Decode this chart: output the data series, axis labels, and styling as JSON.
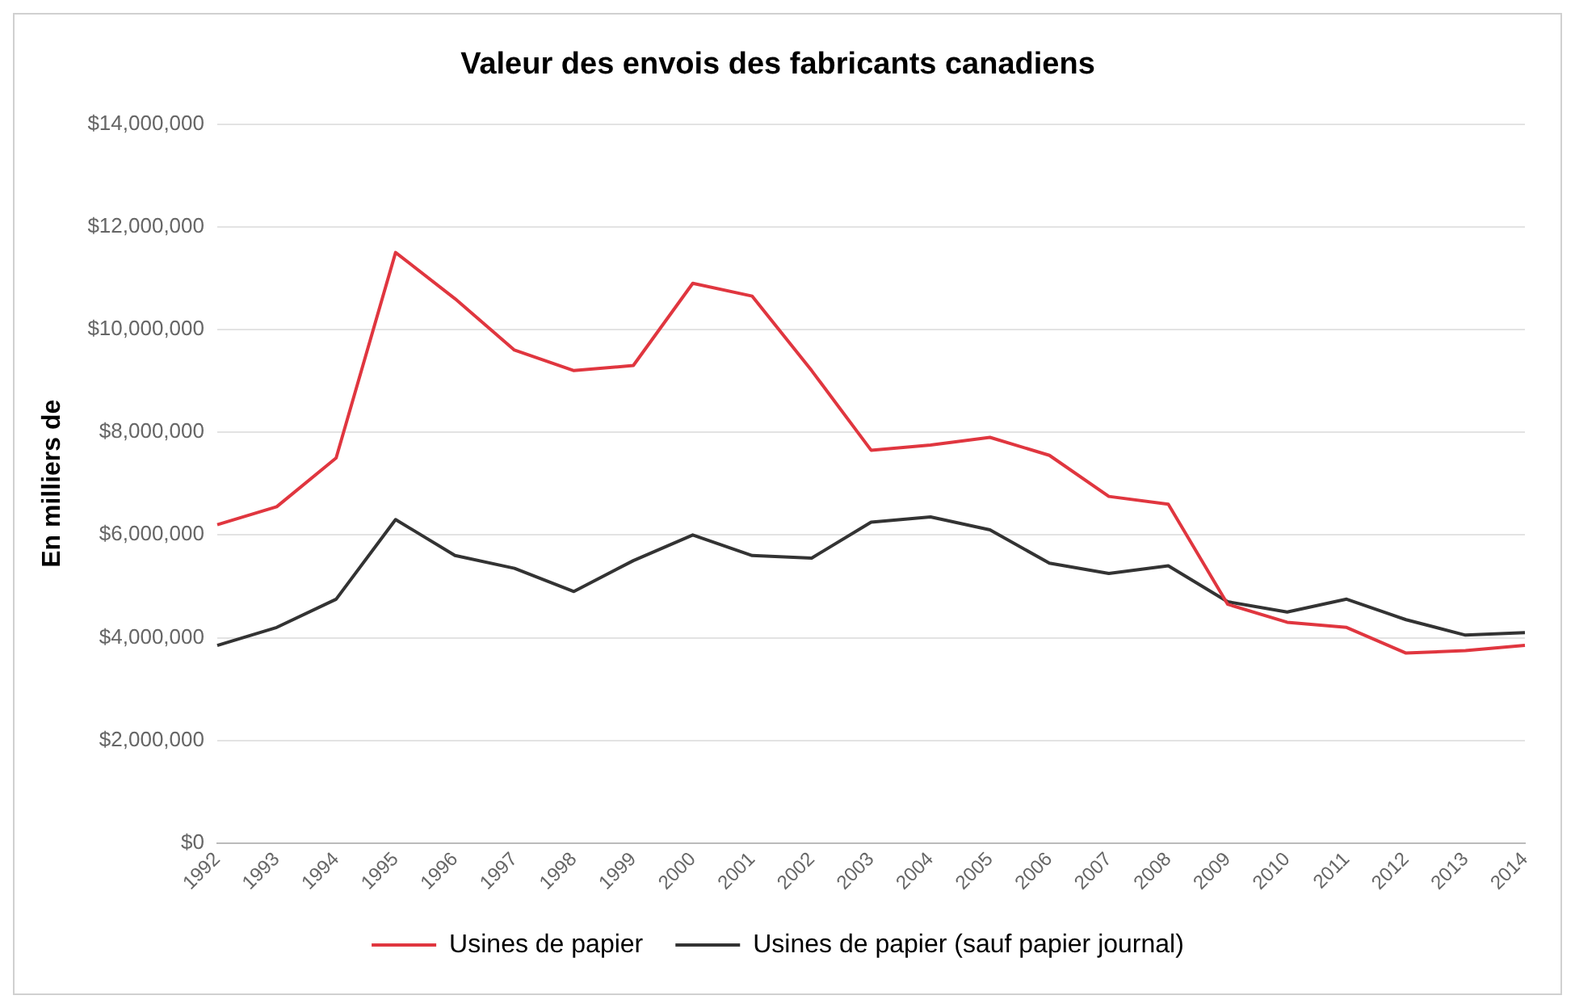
{
  "chart_data": {
    "type": "line",
    "title": "Valeur des envois des fabricants canadiens",
    "ylabel": "En milliers de",
    "categories": [
      "1992",
      "1993",
      "1994",
      "1995",
      "1996",
      "1997",
      "1998",
      "1999",
      "2000",
      "2001",
      "2002",
      "2003",
      "2004",
      "2005",
      "2006",
      "2007",
      "2008",
      "2009",
      "2010",
      "2011",
      "2012",
      "2013",
      "2014"
    ],
    "series": [
      {
        "name": "Usines de papier",
        "color": "#e0363f",
        "values": [
          6200000,
          6550000,
          7500000,
          11500000,
          10600000,
          9600000,
          9200000,
          9300000,
          10900000,
          10650000,
          9200000,
          7650000,
          7750000,
          7900000,
          7550000,
          6750000,
          6600000,
          4650000,
          4300000,
          4200000,
          3700000,
          3750000,
          3850000
        ]
      },
      {
        "name": "Usines de papier (sauf papier journal)",
        "color": "#333333",
        "values": [
          3850000,
          4200000,
          4750000,
          6300000,
          5600000,
          5350000,
          4900000,
          5500000,
          6000000,
          5600000,
          5550000,
          6250000,
          6350000,
          6100000,
          5450000,
          5250000,
          5400000,
          4700000,
          4500000,
          4750000,
          4350000,
          4050000,
          4100000
        ]
      }
    ],
    "ylim": [
      0,
      14000000
    ],
    "yticks": [
      {
        "value": 0,
        "label": "$0"
      },
      {
        "value": 2000000,
        "label": "$2,000,000"
      },
      {
        "value": 4000000,
        "label": "$4,000,000"
      },
      {
        "value": 6000000,
        "label": "$6,000,000"
      },
      {
        "value": 8000000,
        "label": "$8,000,000"
      },
      {
        "value": 10000000,
        "label": "$10,000,000"
      },
      {
        "value": 12000000,
        "label": "$12,000,000"
      },
      {
        "value": 14000000,
        "label": "$14,000,000"
      }
    ],
    "grid": "y",
    "legend": "bottom",
    "marker": "none",
    "line_style": "solid"
  }
}
